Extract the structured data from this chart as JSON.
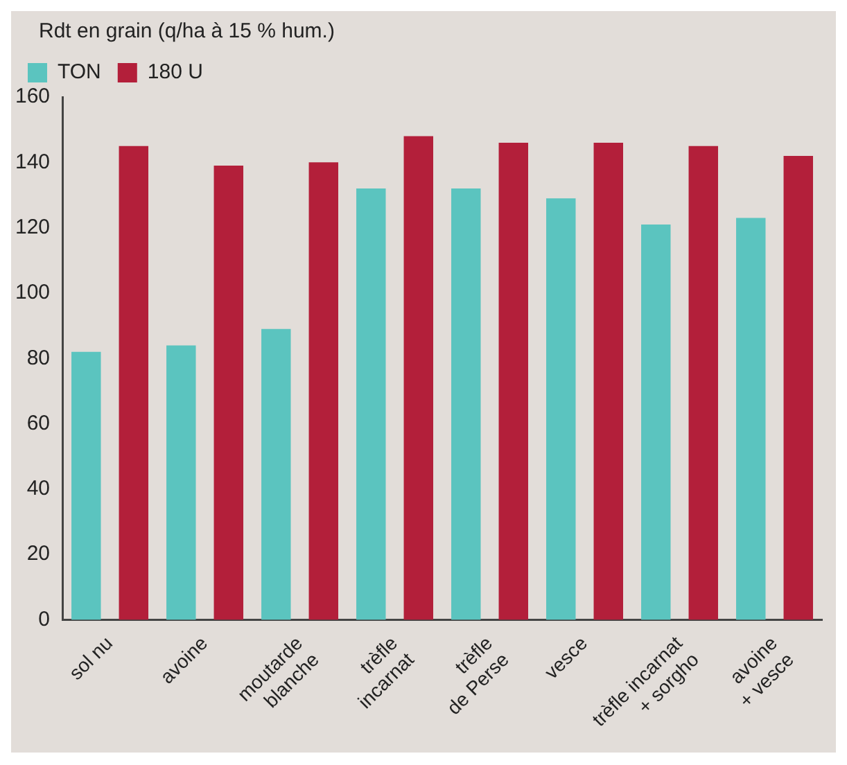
{
  "chart_data": {
    "type": "bar",
    "ylabel": "Rdt en grain (q/ha à 15 % hum.)",
    "categories": [
      "sol nu",
      "avoine",
      "moutarde\nblanche",
      "trèfle\nincarnat",
      "trèfle\nde Perse",
      "vesce",
      "trèfle incarnat\n+ sorgho",
      "avoine\n+ vesce"
    ],
    "series": [
      {
        "name": "TON",
        "color": "#5bc4bf",
        "values": [
          82,
          84,
          89,
          132,
          132,
          129,
          121,
          123
        ]
      },
      {
        "name": "180 U",
        "color": "#b31f3a",
        "values": [
          145,
          139,
          140,
          148,
          146,
          146,
          145,
          142
        ]
      }
    ],
    "ylim": [
      0,
      160
    ],
    "yticks": [
      0,
      20,
      40,
      60,
      80,
      100,
      120,
      140,
      160
    ],
    "grid": false,
    "legend": "top left"
  }
}
